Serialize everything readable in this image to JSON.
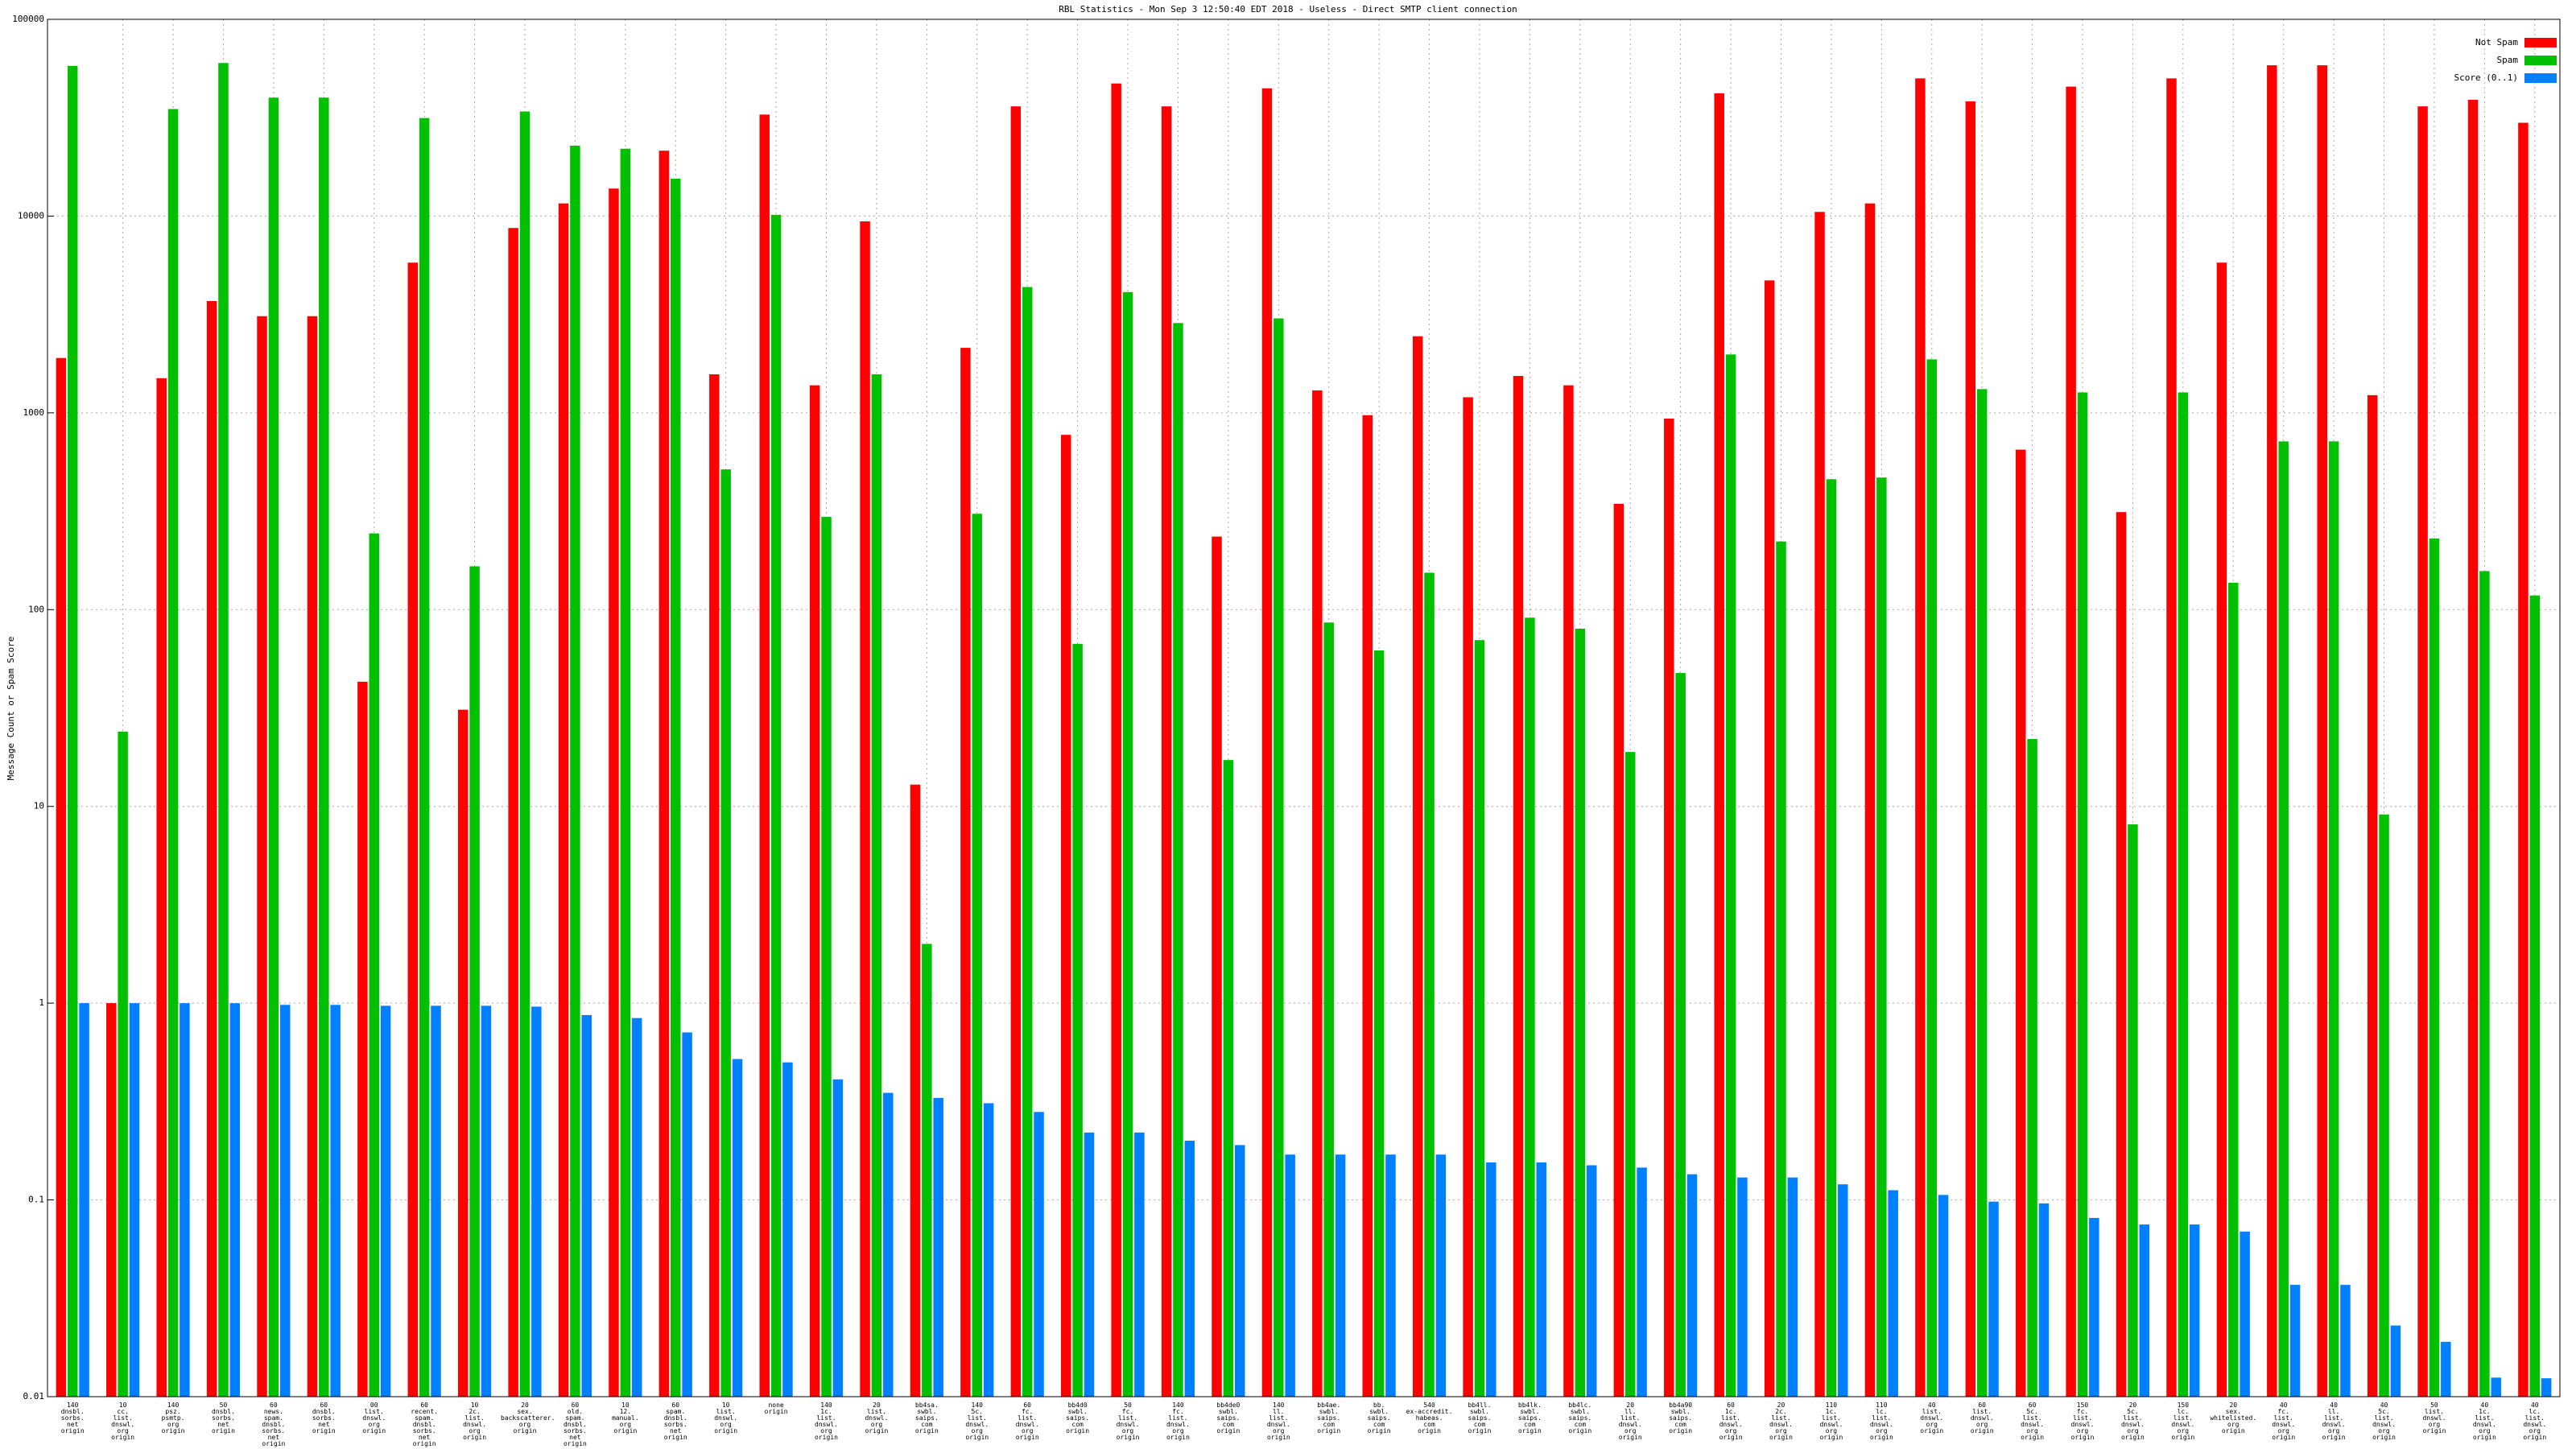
{
  "chart_data": {
    "type": "bar",
    "title": "RBL Statistics - Mon Sep  3 12:50:40 EDT 2018 - Useless - Direct SMTP client connection",
    "y_label": "Message Count or Spam Score",
    "log_scale": true,
    "grid": true,
    "legend": "top-right",
    "ylim": [
      0.01,
      100000
    ],
    "yticks": [
      0.01,
      0.1,
      1,
      10,
      100,
      1000,
      10000,
      100000
    ],
    "categories": [
      "140\ndnsbl.\nsorbs.\nnet\norigin",
      "10\ncc.\nlist.\ndnswl.\norg\norigin",
      "140\npsz.\npsmtp.\norg\norigin",
      "50\ndnsbl.\nsorbs.\nnet\norigin",
      "60\nnews.\nspam.\ndnsbl.\nsorbs.\nnet\norigin",
      "60\ndnsbl.\nsorbs.\nnet\norigin",
      "00\nlist.\ndnswl.\norg\norigin",
      "60\nrecent.\nspam.\ndnsbl.\nsorbs.\nnet\norigin",
      "10\n2c.\nlist.\ndnswl.\norg\norigin",
      "20\nsex.\nbackscatterer.\norg\norigin",
      "60\nold.\nspam.\ndnsbl.\nsorbs.\nnet\norigin",
      "10\n12.\nmanual.\norg\norigin",
      "60\nspam.\ndnsbl.\nsorbs.\nnet\norigin",
      "10\nlist.\ndnswl.\norg\norigin",
      "none\norigin",
      "140\n1c.\nlist.\ndnswl.\norg\norigin",
      "20\nlist.\ndnswl.\norg\norigin",
      "bb4sa.\nswbl.\nsaips.\ncom\norigin",
      "140\n5c.\nlist.\ndnswl.\norg\norigin",
      "60\nfc.\nlist.\ndnswl.\norg\norigin",
      "bb4d0\nswbl.\nsaips.\ncom\norigin",
      "50\nfc.\nlist.\ndnswl.\norg\norigin",
      "140\nfc.\nlist.\ndnswl.\norg\norigin",
      "bb4de0\nswbl.\nsaips.\ncom\norigin",
      "140\nll.\nlist.\ndnswl.\norg\norigin",
      "bb4ae.\nswbl.\nsaips.\ncom\norigin",
      "bb.\nswbl.\nsaips.\ncom\norigin",
      "540\nex-accredit.\nhabeas.\ncom\norigin",
      "bb4ll.\nswbl.\nsaips.\ncom\norigin",
      "bb4lk.\nswbl.\nsaips.\ncom\norigin",
      "bb4lc.\nswbl.\nsaips.\ncom\norigin",
      "20\nll.\nlist.\ndnswl.\norg\norigin",
      "bb4a90\nswbl.\nsaips.\ncom\norigin",
      "60\n1c.\nlist.\ndnswl.\norg\norigin",
      "20\n2c.\nlist.\ndnswl.\norg\norigin",
      "110\n1c.\nlist.\ndnswl.\norg\norigin",
      "110\nlc.\nlist.\ndnswl.\norg\norigin",
      "40\nlist.\ndnswl.\norg\norigin",
      "60\nlist.\ndnswl.\norg\norigin",
      "60\n5c.\nlist.\ndnswl.\norg\norigin",
      "150\nfc.\nlist.\ndnswl.\norg\norigin",
      "20\n5c.\nlist.\ndnswl.\norg\norigin",
      "150\nlc.\nlist.\ndnswl.\norg\norigin",
      "20\nsex.\nwhitelisted.\norg\norigin",
      "40\nfc.\nlist.\ndnswl.\norg\norigin",
      "40\nll.\nlist.\ndnswl.\norg\norigin",
      "40\n5c.\nlist.\ndnswl.\norg\norigin",
      "50\nlist.\ndnswl.\norg\norigin",
      "40\n1c.\nlist.\ndnswl.\norg\norigin",
      "40\nlc.\nlist.\ndnswl.\norg\norigin"
    ],
    "series": [
      {
        "name": "Not Spam",
        "color": "#ff0000",
        "values": [
          1900,
          1,
          1500,
          3700,
          3100,
          3100,
          43,
          5800,
          31,
          8700,
          11600,
          13800,
          21500,
          1570,
          32800,
          1380,
          9400,
          12.9,
          2140,
          36100,
          773,
          47200,
          36100,
          235,
          44600,
          1300,
          973,
          2450,
          1200,
          1540,
          1380,
          345,
          935,
          42100,
          4710,
          10500,
          11600,
          50100,
          38300,
          650,
          45500,
          313,
          50100,
          5800,
          58400,
          58400,
          1230,
          36100,
          39000,
          29800
        ]
      },
      {
        "name": "Spam",
        "color": "#00c000",
        "values": [
          58000,
          24,
          35000,
          60000,
          40000,
          40000,
          244,
          31500,
          166,
          34000,
          22800,
          22000,
          15500,
          516,
          10150,
          296,
          1570,
          2.0,
          307,
          4360,
          67,
          4110,
          2860,
          17.2,
          3020,
          86,
          62,
          154,
          70,
          91,
          80,
          18.9,
          47.6,
          1980,
          222,
          460,
          469,
          1870,
          1320,
          22,
          1270,
          8.1,
          1270,
          137,
          716,
          716,
          9.1,
          230,
          157,
          118
        ]
      },
      {
        "name": "Score (0..1)",
        "color": "#0080ff",
        "values": [
          1,
          1,
          1,
          1,
          0.98,
          0.98,
          0.97,
          0.97,
          0.97,
          0.96,
          0.87,
          0.84,
          0.71,
          0.52,
          0.5,
          0.41,
          0.35,
          0.33,
          0.31,
          0.28,
          0.22,
          0.22,
          0.2,
          0.19,
          0.17,
          0.17,
          0.17,
          0.17,
          0.155,
          0.155,
          0.15,
          0.146,
          0.135,
          0.13,
          0.13,
          0.12,
          0.112,
          0.106,
          0.098,
          0.096,
          0.081,
          0.075,
          0.075,
          0.069,
          0.037,
          0.037,
          0.023,
          0.019,
          0.0125,
          0.0124
        ]
      }
    ]
  }
}
